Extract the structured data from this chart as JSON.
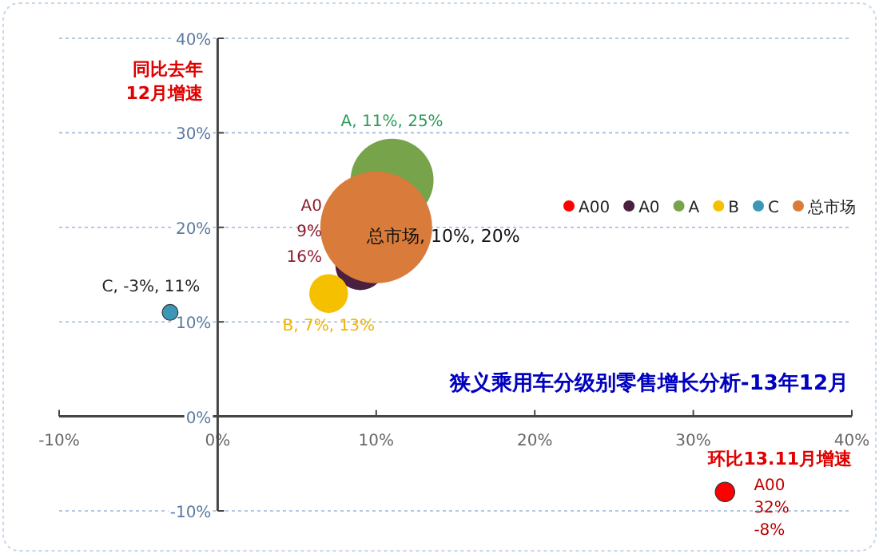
{
  "chart_data": {
    "type": "bubble",
    "title": "狭义乘用车分级别零售增长分析-13年12月",
    "xlabel": "环比13.11月增速",
    "ylabel": "同比去年\n12月增速",
    "xlim": [
      -10,
      40
    ],
    "ylim": [
      -10,
      40
    ],
    "xticks": [
      {
        "value": -10,
        "label": "-10%"
      },
      {
        "value": 0,
        "label": "0%"
      },
      {
        "value": 10,
        "label": "10%"
      },
      {
        "value": 20,
        "label": "20%"
      },
      {
        "value": 30,
        "label": "30%"
      },
      {
        "value": 40,
        "label": "40%"
      }
    ],
    "yticks": [
      {
        "value": -10,
        "label": "-10%"
      },
      {
        "value": 0,
        "label": "0%"
      },
      {
        "value": 10,
        "label": "10%"
      },
      {
        "value": 20,
        "label": "20%"
      },
      {
        "value": 30,
        "label": "30%"
      },
      {
        "value": 40,
        "label": "40%"
      }
    ],
    "grid": "y",
    "legend": "top right",
    "series": [
      {
        "name": "A00",
        "color": "#ff0000",
        "x": [
          32
        ],
        "values": [
          -8
        ],
        "sizes": [
          0.03
        ],
        "value_labels": [
          "A00\n32%\n-8%"
        ]
      },
      {
        "name": "A0",
        "color": "#4b1f3f",
        "x": [
          9
        ],
        "values": [
          16
        ],
        "sizes": [
          0.2
        ],
        "value_labels": [
          "A0\n9%\n16%"
        ]
      },
      {
        "name": "A",
        "color": "#77a34a",
        "x": [
          11
        ],
        "values": [
          25
        ],
        "sizes": [
          0.55
        ],
        "value_labels": [
          "A, 11%, 25%"
        ]
      },
      {
        "name": "B",
        "color": "#f5c000",
        "x": [
          7
        ],
        "values": [
          13
        ],
        "sizes": [
          0.12
        ],
        "value_labels": [
          "B, 7%, 13%"
        ]
      },
      {
        "name": "C",
        "color": "#3b97b5",
        "x": [
          -3
        ],
        "values": [
          11
        ],
        "sizes": [
          0.02
        ],
        "value_labels": [
          "C, -3%, 11%"
        ]
      },
      {
        "name": "总市场",
        "color": "#d97b3a",
        "x": [
          10
        ],
        "values": [
          20
        ],
        "sizes": [
          1
        ],
        "value_labels": [
          "总市场, 10%, 20%"
        ]
      }
    ]
  }
}
